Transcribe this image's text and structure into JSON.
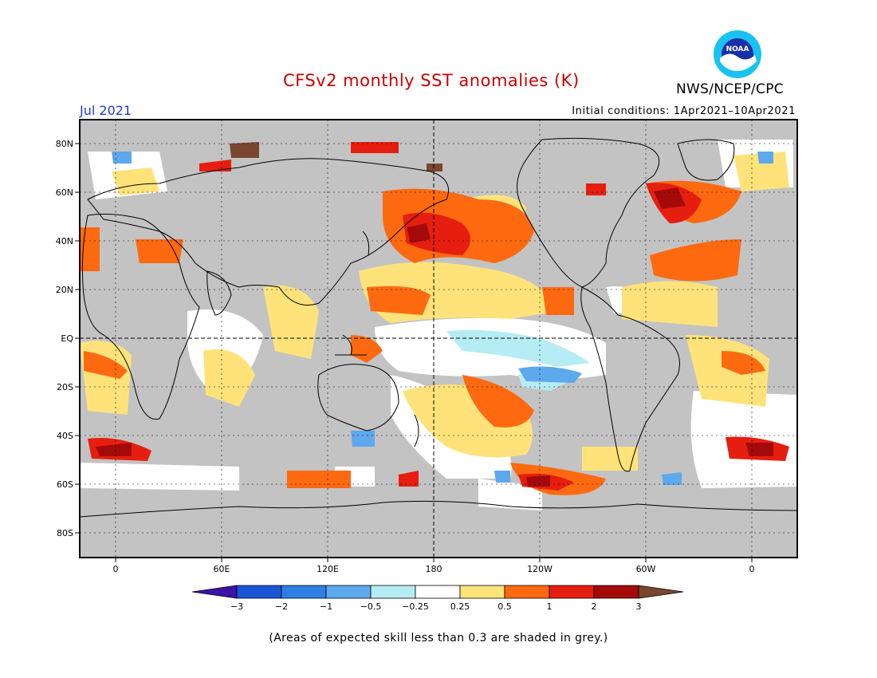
{
  "header": {
    "title": "CFSv2 monthly SST anomalies (K)",
    "month": "Jul 2021",
    "initial_conditions": "Initial conditions: 1Apr2021–10Apr2021",
    "agency": "NWS/NCEP/CPC",
    "logo_text": "NOAA"
  },
  "map": {
    "x_tick_labels": [
      "0",
      "60E",
      "120E",
      "180",
      "120W",
      "60W",
      "0"
    ],
    "y_tick_labels": [
      "80N",
      "60N",
      "40N",
      "20N",
      "EQ",
      "20S",
      "40S",
      "60S",
      "80S"
    ],
    "mask_color": "#c3c3c3",
    "ocean_neutral_color": "#ffffff"
  },
  "colorbar": {
    "tick_labels": [
      "−3",
      "−2",
      "−1",
      "−0.5",
      "−0.25",
      "0.25",
      "0.5",
      "1",
      "2",
      "3"
    ],
    "colors": [
      "#3d12a6",
      "#1a55d6",
      "#2c7fe4",
      "#5ea8ee",
      "#b6ecf3",
      "#ffffff",
      "#ffe37a",
      "#ff6a10",
      "#e61e10",
      "#a50a0a",
      "#7a4630"
    ]
  },
  "footnote": "(Areas of expected skill less than 0.3 are shaded in grey.)"
}
